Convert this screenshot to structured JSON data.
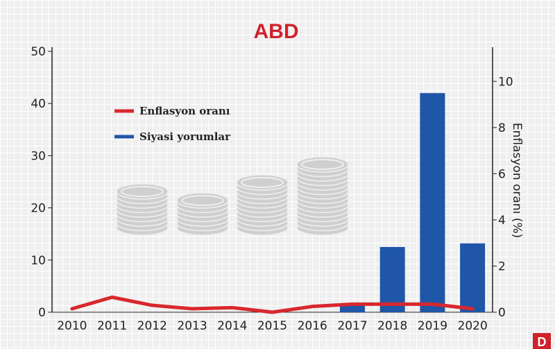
{
  "chart_data": {
    "type": "bar",
    "title": "ABD",
    "categories": [
      "2010",
      "2011",
      "2012",
      "2013",
      "2014",
      "2015",
      "2016",
      "2017",
      "2018",
      "2019",
      "2020"
    ],
    "series": [
      {
        "name": "Siyasi yorumlar",
        "type": "bar",
        "axis": "left",
        "color": "#1f56a8",
        "values": [
          0,
          0,
          0,
          0,
          0,
          0,
          0,
          1.5,
          12.5,
          42,
          13.2
        ]
      },
      {
        "name": "Enflasyon oranı",
        "type": "line",
        "axis": "right",
        "color": "#d8282d",
        "values": [
          0.15,
          0.65,
          0.3,
          0.15,
          0.2,
          0.0,
          0.25,
          0.35,
          0.35,
          0.35,
          0.15
        ]
      }
    ],
    "left_axis": {
      "ylim": [
        0,
        50
      ],
      "ticks": [
        "0",
        "10",
        "20",
        "30",
        "40",
        "50"
      ]
    },
    "right_axis": {
      "ylim": [
        0,
        11.3
      ],
      "ticks": [
        "0",
        "2",
        "4",
        "6",
        "8",
        "10"
      ],
      "label": "Enflasyon oranı (%)"
    },
    "legend_position": "upper-left",
    "grid": false
  },
  "badge": "D",
  "colors": {
    "title": "#d0222a",
    "bars": "#1f56a8",
    "line": "#d8282d",
    "coins": "#cfcfcf"
  }
}
